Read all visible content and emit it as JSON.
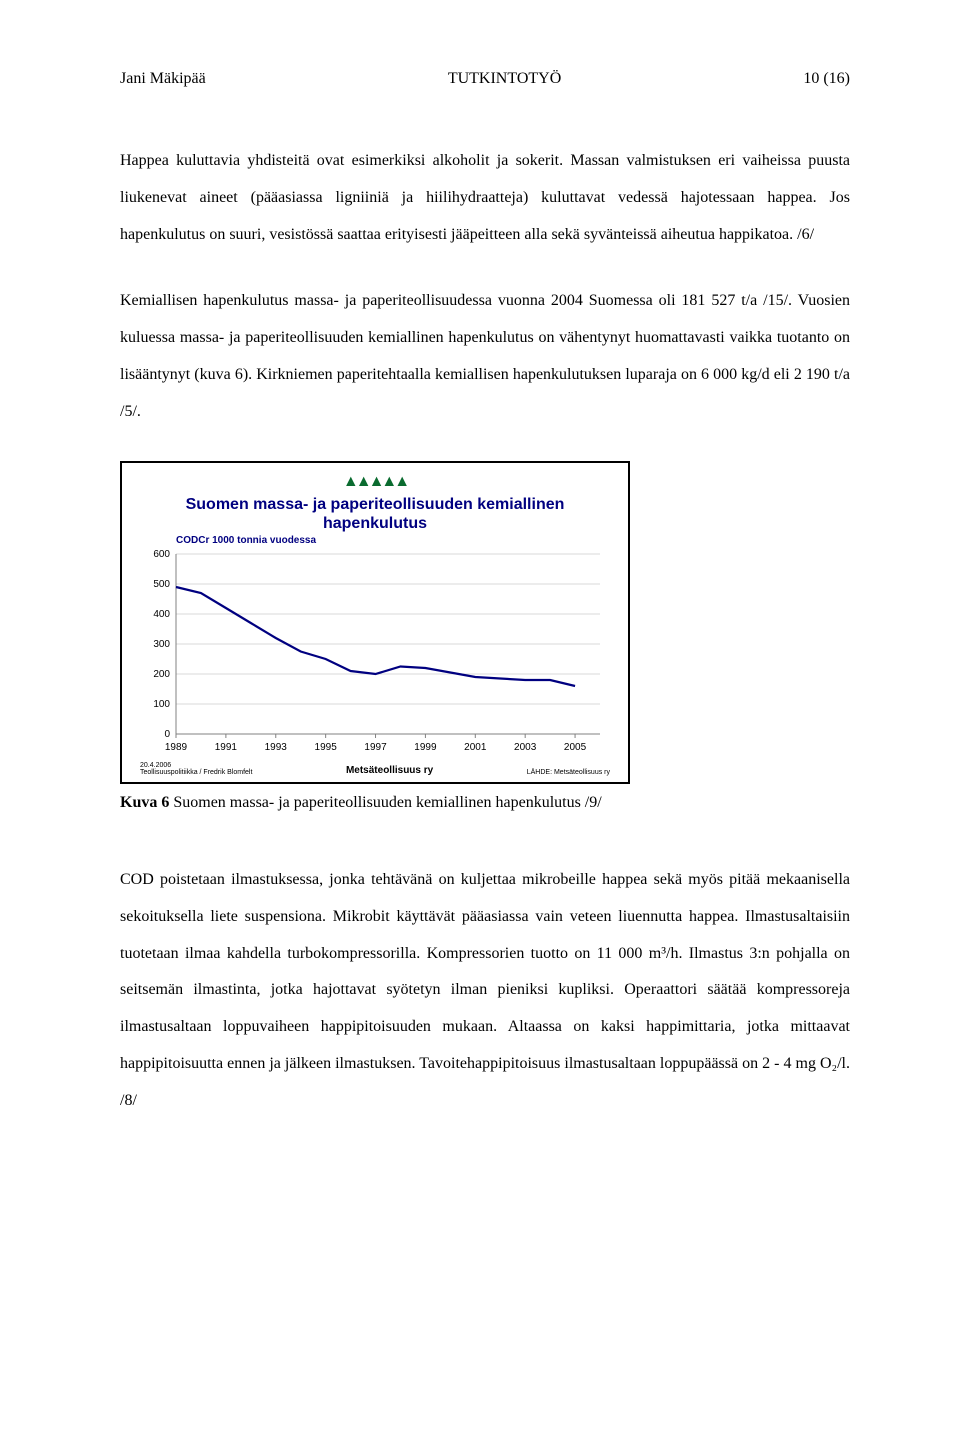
{
  "header": {
    "left": "Jani Mäkipää",
    "center": "TUTKINTOTYÖ",
    "right": "10 (16)"
  },
  "para1": "Happea kuluttavia yhdisteitä ovat esimerkiksi alkoholit ja sokerit. Massan valmistuksen eri vaiheissa puusta liukenevat aineet (pääasiassa ligniiniä ja hiilihydraatteja) kuluttavat vedessä hajotessaan happea. Jos hapenkulutus on suuri, vesistössä saattaa erityisesti jääpeitteen alla sekä syvänteissä aiheutua happikatoa. /6/",
  "para2": "Kemiallisen hapenkulutus massa- ja paperiteollisuudessa vuonna 2004 Suomessa oli 181 527 t/a /15/. Vuosien kuluessa massa- ja paperiteollisuuden kemiallinen hapenkulutus on vähentynyt huomattavasti vaikka tuotanto on lisääntynyt (kuva 6). Kirkniemen paperitehtaalla kemiallisen hapenkulutuksen luparaja on 6 000 kg/d eli 2 190 t/a /5/.",
  "chart": {
    "type": "line",
    "title_line1": "Suomen massa- ja paperiteollisuuden kemiallinen",
    "title_line2": "hapenkulutus",
    "subtitle": "CODCr 1000 tonnia vuodessa",
    "logo_glyph": "▲▲▲▲▲",
    "logo_color": "#0a6b2f",
    "line_color": "#000080",
    "text_color": "#000080",
    "grid_color": "#d9d9d9",
    "axis_color": "#808080",
    "background": "#ffffff",
    "ylim": [
      0,
      600
    ],
    "yticks": [
      0,
      100,
      200,
      300,
      400,
      500,
      600
    ],
    "xlim": [
      1989,
      2006
    ],
    "xticks": [
      1989,
      1991,
      1993,
      1995,
      1997,
      1999,
      2001,
      2003,
      2005
    ],
    "series": [
      {
        "x": 1989,
        "y": 490
      },
      {
        "x": 1990,
        "y": 470
      },
      {
        "x": 1991,
        "y": 420
      },
      {
        "x": 1992,
        "y": 370
      },
      {
        "x": 1993,
        "y": 320
      },
      {
        "x": 1994,
        "y": 275
      },
      {
        "x": 1995,
        "y": 250
      },
      {
        "x": 1996,
        "y": 210
      },
      {
        "x": 1997,
        "y": 200
      },
      {
        "x": 1998,
        "y": 225
      },
      {
        "x": 1999,
        "y": 220
      },
      {
        "x": 2000,
        "y": 205
      },
      {
        "x": 2001,
        "y": 190
      },
      {
        "x": 2002,
        "y": 185
      },
      {
        "x": 2003,
        "y": 180
      },
      {
        "x": 2004,
        "y": 180
      },
      {
        "x": 2005,
        "y": 160
      }
    ],
    "footer_left_l1": "20.4.2006",
    "footer_left_l2": "Teollisuuspolitiikka / Fredrik Blomfelt",
    "footer_mid": "Metsäteollisuus ry",
    "footer_right": "LÄHDE: Metsäteollisuus ry"
  },
  "caption": {
    "label": "Kuva 6",
    "text": "  Suomen massa- ja paperiteollisuuden kemiallinen hapenkulutus /9/"
  },
  "para3": "COD poistetaan ilmastuksessa, jonka tehtävänä on kuljettaa mikrobeille happea sekä myös pitää mekaanisella sekoituksella liete suspensiona. Mikrobit käyttävät pääasiassa vain veteen liuennutta happea. Ilmastusaltaisiin tuotetaan ilmaa kahdella turbokompressorilla. Kompressorien tuotto on 11 000 m³/h. Ilmastus 3:n pohjalla on seitsemän ilmastinta, jotka hajottavat syötetyn ilman pieniksi kupliksi. Operaattori säätää kompressoreja ilmastusaltaan loppuvaiheen happipitoisuuden mukaan. Altaassa on kaksi happimittaria, jotka mittaavat happipitoisuutta ennen ja jälkeen ilmastuksen. Tavoitehappipitoisuus ilmastusaltaan loppupäässä on 2 - 4 mg O₂/l. /8/"
}
